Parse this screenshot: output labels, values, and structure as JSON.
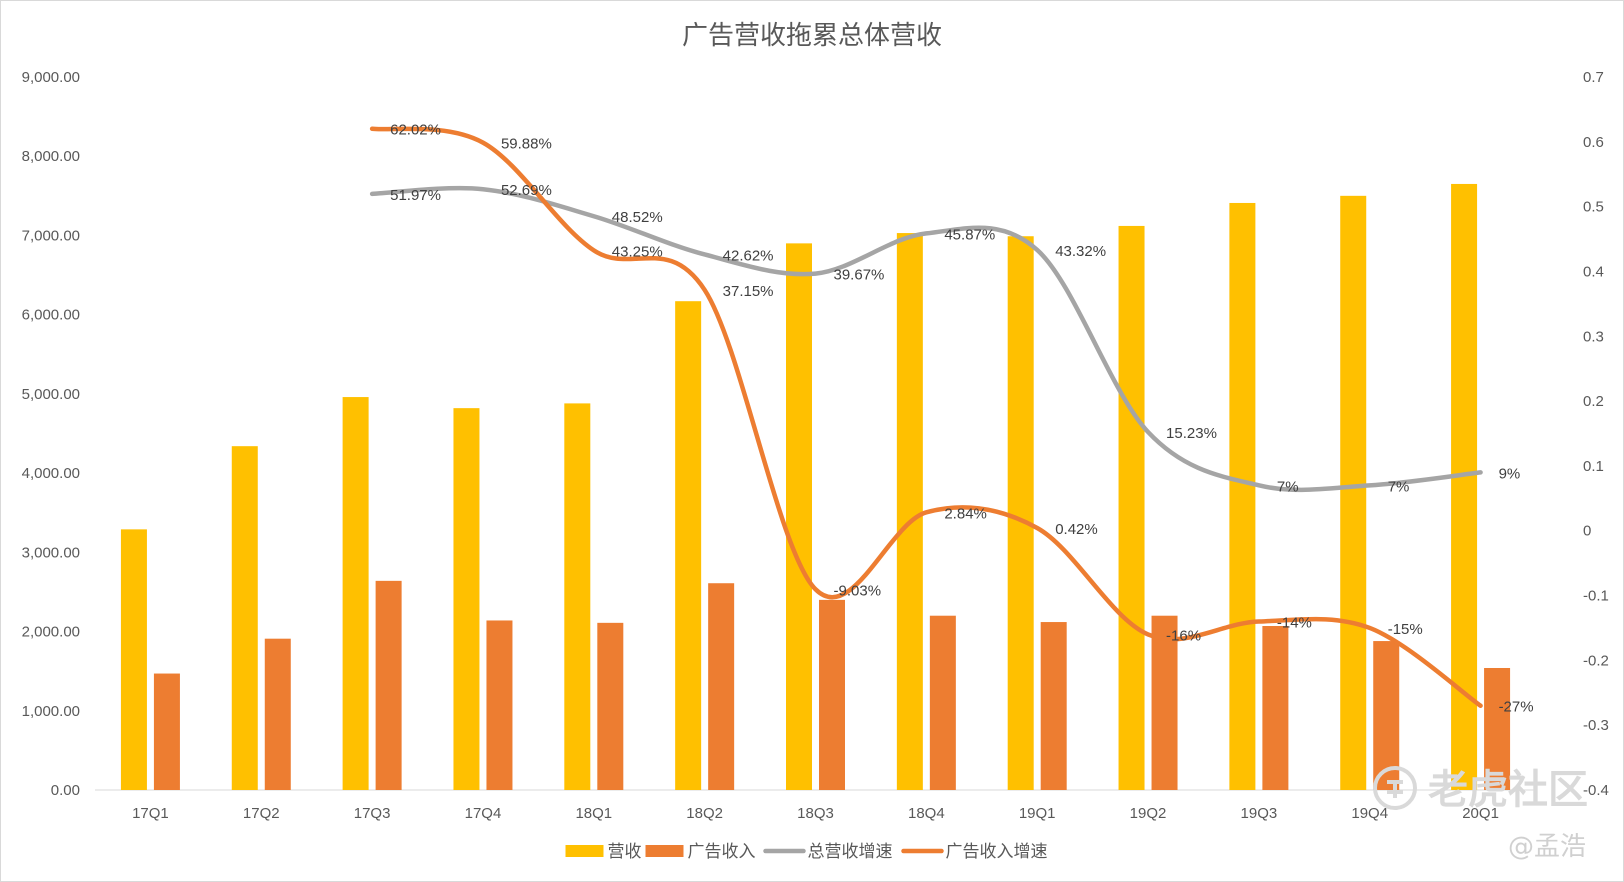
{
  "chart_data": {
    "type": "bar",
    "title": "广告营收拖累总体营收",
    "categories": [
      "17Q1",
      "17Q2",
      "17Q3",
      "17Q4",
      "18Q1",
      "18Q2",
      "18Q3",
      "18Q4",
      "19Q1",
      "19Q2",
      "19Q3",
      "19Q4",
      "20Q1"
    ],
    "y_left": {
      "min": 0,
      "max": 9000,
      "ticks": [
        "0.00",
        "1,000.00",
        "2,000.00",
        "3,000.00",
        "4,000.00",
        "5,000.00",
        "6,000.00",
        "7,000.00",
        "8,000.00",
        "9,000.00"
      ]
    },
    "y_right": {
      "min": -0.4,
      "max": 0.7,
      "ticks": [
        "-0.4",
        "-0.3",
        "-0.2",
        "-0.1",
        "0",
        "0.1",
        "0.2",
        "0.3",
        "0.4",
        "0.5",
        "0.6",
        "0.7"
      ]
    },
    "series": [
      {
        "name": "营收",
        "kind": "bar",
        "axis": "left",
        "color": "#FFC000",
        "values": [
          3290,
          4340,
          4960,
          4820,
          4880,
          6170,
          6900,
          7030,
          6990,
          7120,
          7410,
          7500,
          7650
        ]
      },
      {
        "name": "广告收入",
        "kind": "bar",
        "axis": "left",
        "color": "#ED7D31",
        "values": [
          1470,
          1910,
          2640,
          2140,
          2110,
          2610,
          2400,
          2200,
          2120,
          2200,
          2070,
          1880,
          1540
        ]
      },
      {
        "name": "总营收增速",
        "kind": "line",
        "axis": "right",
        "color": "#A5A5A5",
        "values": [
          null,
          null,
          0.5197,
          0.5269,
          0.4852,
          0.4262,
          0.3967,
          0.4587,
          0.4332,
          0.1523,
          0.07,
          0.07,
          0.09
        ],
        "labels": [
          "",
          "",
          "51.97%",
          "52.69%",
          "48.52%",
          "42.62%",
          "39.67%",
          "45.87%",
          "43.32%",
          "15.23%",
          "7%",
          "7%",
          "9%"
        ]
      },
      {
        "name": "广告收入增速",
        "kind": "line",
        "axis": "right",
        "color": "#ED7D31",
        "values": [
          null,
          null,
          0.6202,
          0.5988,
          0.4325,
          0.3715,
          -0.0903,
          0.0284,
          0.0042,
          -0.16,
          -0.14,
          -0.15,
          -0.27
        ],
        "labels": [
          "",
          "",
          "62.02%",
          "59.88%",
          "43.25%",
          "37.15%",
          "-9.03%",
          "2.84%",
          "0.42%",
          "-16%",
          "-14%",
          "-15%",
          "-27%"
        ]
      }
    ],
    "legend_position": "bottom",
    "grid": false
  },
  "watermark": {
    "brand": "老虎社区",
    "author": "@孟浩"
  }
}
